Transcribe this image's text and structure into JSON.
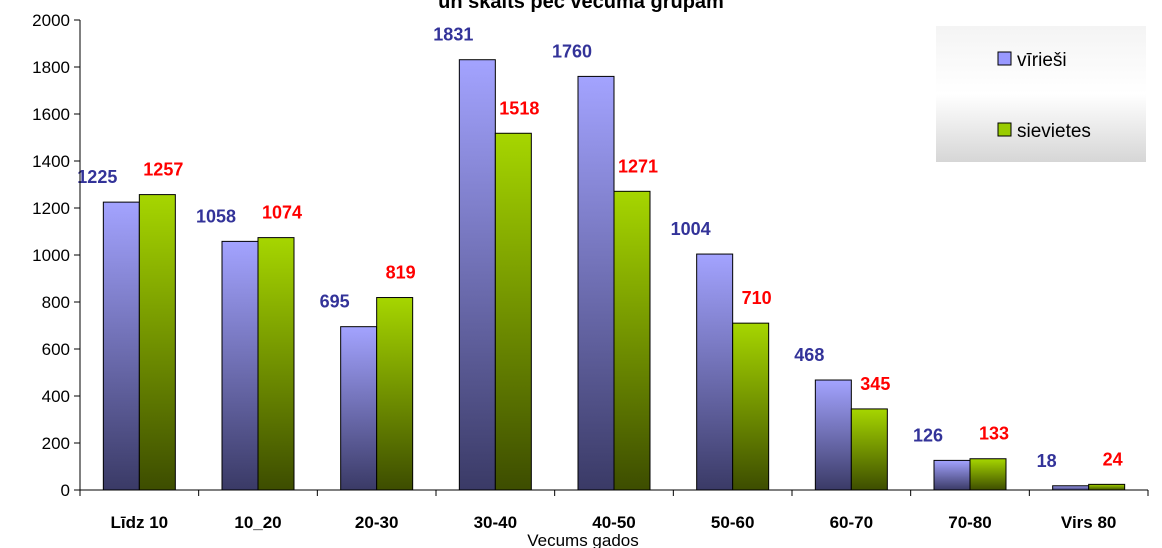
{
  "chart_data": {
    "type": "bar",
    "title": "un skaits pēc vecuma grupām",
    "xlabel": "Vecums gados",
    "ylabel": "",
    "ylim": [
      0,
      2000
    ],
    "yticks": [
      0,
      200,
      400,
      600,
      800,
      1000,
      1200,
      1400,
      1600,
      1800,
      2000
    ],
    "categories": [
      "Līdz 10",
      "10_20",
      "20-30",
      "30-40",
      "40-50",
      "50-60",
      "60-70",
      "70-80",
      "Virs 80"
    ],
    "series": [
      {
        "name": "vīrieši",
        "values": [
          1225,
          1058,
          695,
          1831,
          1760,
          1004,
          468,
          126,
          18
        ],
        "color": "#9999ff",
        "label_color": "#333399"
      },
      {
        "name": "sievietes",
        "values": [
          1257,
          1074,
          819,
          1518,
          1271,
          710,
          345,
          133,
          24
        ],
        "color": "#99cc00",
        "label_color": "#ff0000"
      }
    ],
    "legend": "top-right",
    "grid": false
  }
}
